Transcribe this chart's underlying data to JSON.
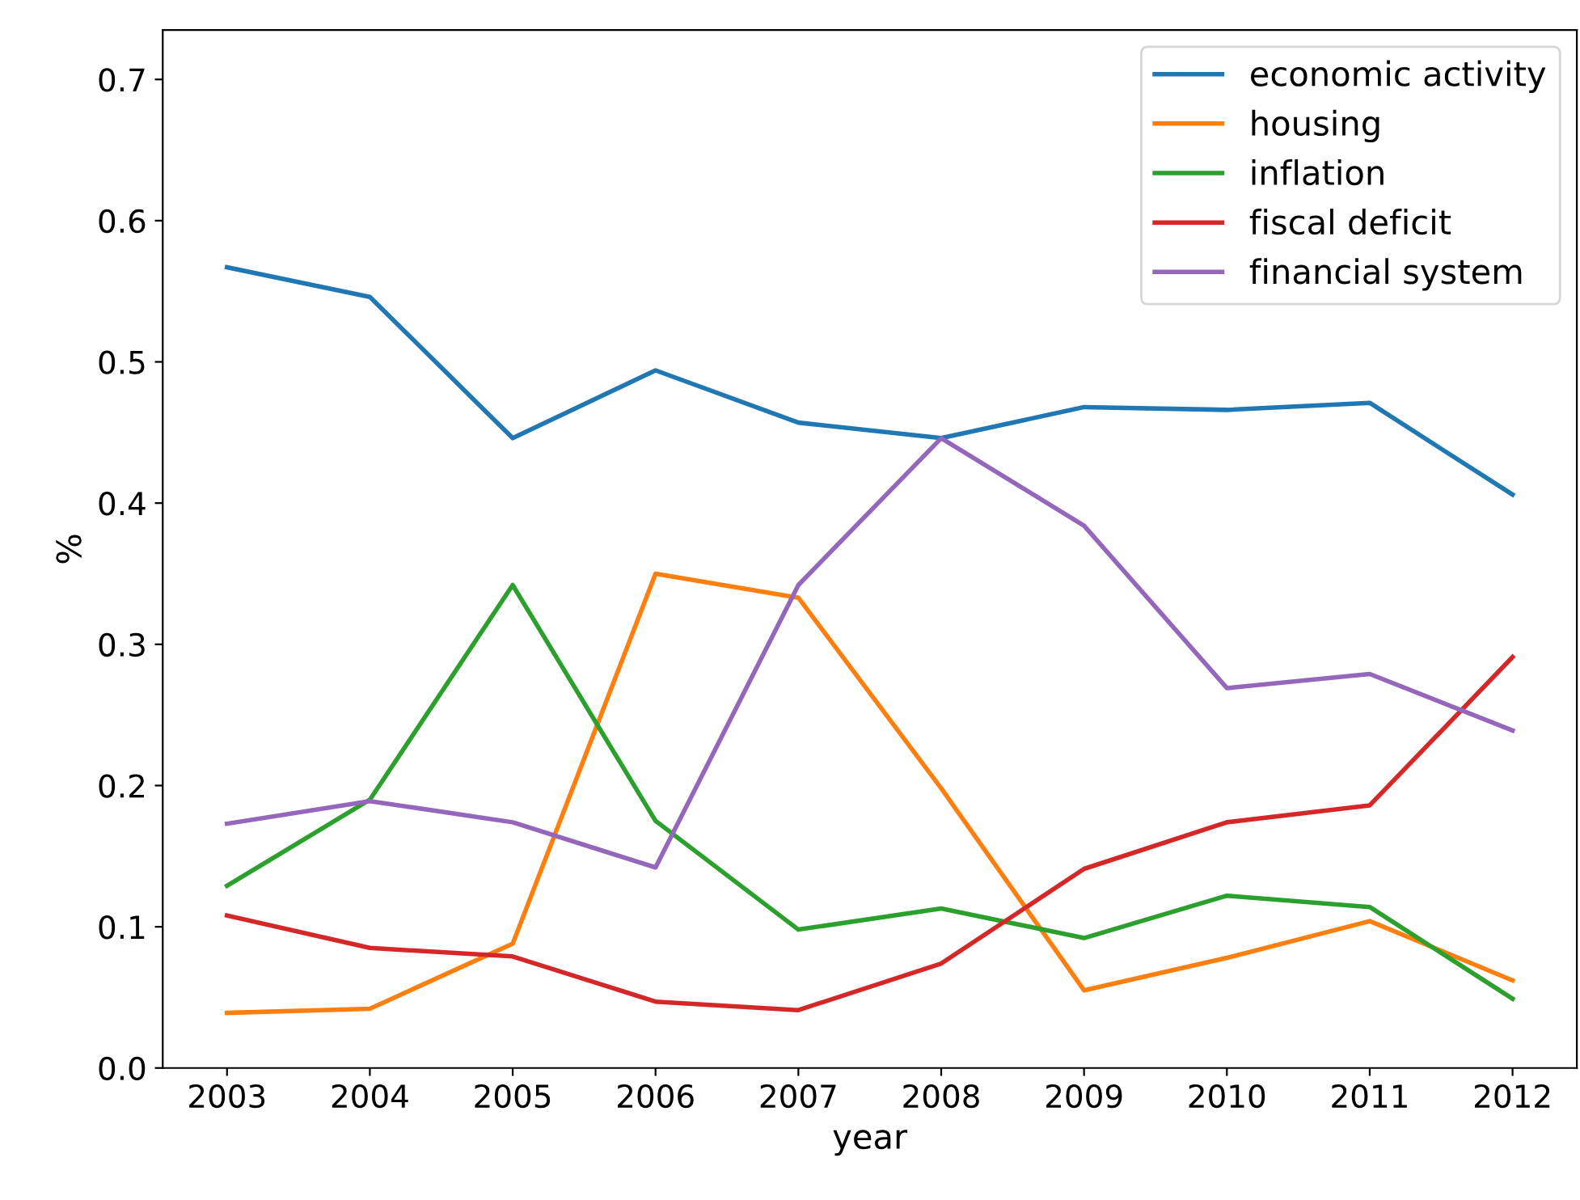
{
  "chart_data": {
    "type": "line",
    "xlabel": "year",
    "ylabel": "%",
    "x": [
      2003,
      2004,
      2005,
      2006,
      2007,
      2008,
      2009,
      2010,
      2011,
      2012
    ],
    "xlim": [
      2002.55,
      2012.45
    ],
    "xticks": [
      2003,
      2004,
      2005,
      2006,
      2007,
      2008,
      2009,
      2010,
      2011,
      2012
    ],
    "ylim": [
      0,
      0.735
    ],
    "yticks": [
      {
        "value": 0,
        "label": "0.0"
      },
      0.1,
      0.2,
      0.3,
      0.4,
      0.5,
      0.6,
      0.7
    ],
    "grid": false,
    "legend": "top right",
    "marker": "none",
    "line_style": "solid",
    "series": [
      {
        "name": "economic activity",
        "color": "#1f77b4",
        "values": [
          0.567,
          0.546,
          0.446,
          0.494,
          0.457,
          0.446,
          0.468,
          0.466,
          0.471,
          0.406
        ]
      },
      {
        "name": "housing",
        "color": "#ff7f0e",
        "values": [
          0.039,
          0.042,
          0.088,
          0.35,
          0.333,
          0.198,
          0.055,
          0.078,
          0.104,
          0.062
        ]
      },
      {
        "name": "inflation",
        "color": "#2ca02c",
        "values": [
          0.129,
          0.19,
          0.342,
          0.175,
          0.098,
          0.113,
          0.092,
          0.122,
          0.114,
          0.049
        ]
      },
      {
        "name": "fiscal deficit",
        "color": "#d62728",
        "values": [
          0.108,
          0.085,
          0.079,
          0.047,
          0.041,
          0.074,
          0.141,
          0.174,
          0.186,
          0.291
        ]
      },
      {
        "name": "financial system",
        "color": "#9467bd",
        "values": [
          0.173,
          0.189,
          0.174,
          0.142,
          0.342,
          0.446,
          0.384,
          0.269,
          0.279,
          0.239
        ]
      }
    ]
  }
}
